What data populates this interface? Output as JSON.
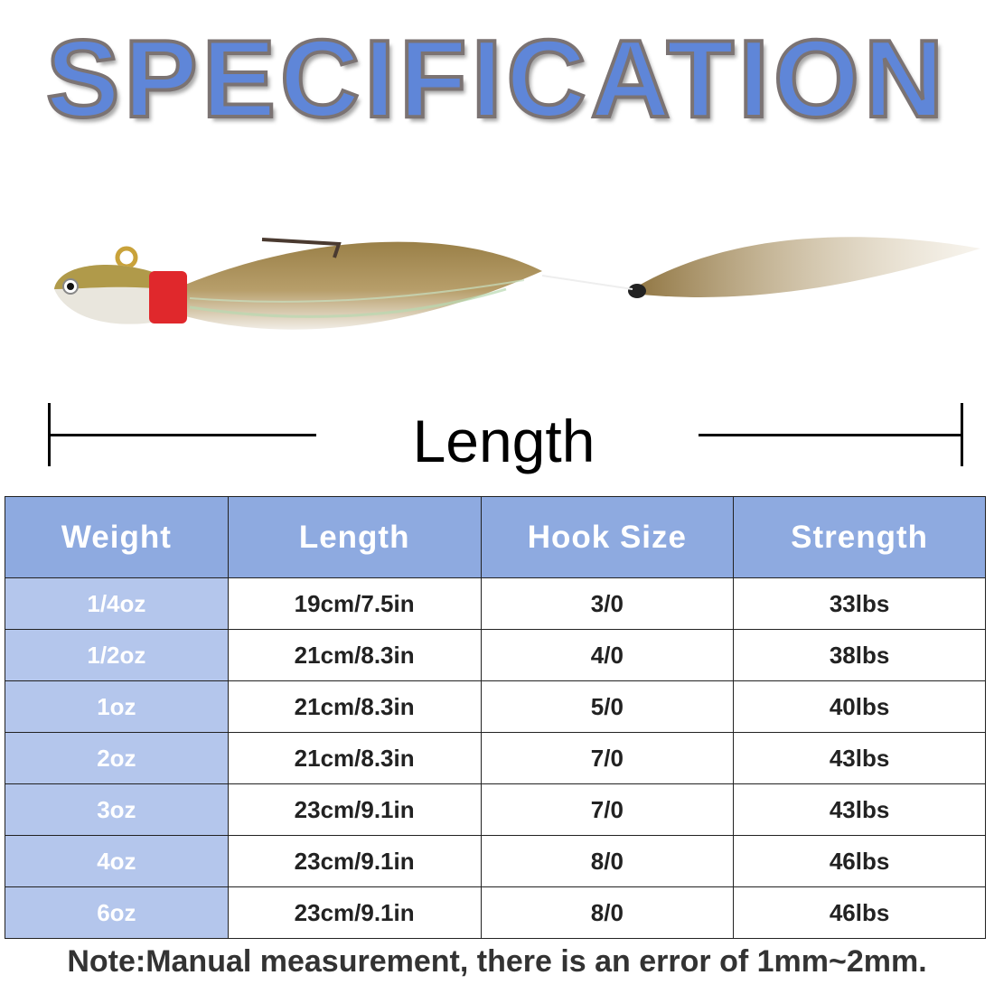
{
  "title": "SPECIFICATION",
  "dimension_label": "Length",
  "table": {
    "headers": [
      "Weight",
      "Length",
      "Hook Size",
      "Strength"
    ],
    "rows": [
      [
        "1/4oz",
        "19cm/7.5in",
        "3/0",
        "33lbs"
      ],
      [
        "1/2oz",
        "21cm/8.3in",
        "4/0",
        "38lbs"
      ],
      [
        "1oz",
        "21cm/8.3in",
        "5/0",
        "40lbs"
      ],
      [
        "2oz",
        "21cm/8.3in",
        "7/0",
        "43lbs"
      ],
      [
        "3oz",
        "23cm/9.1in",
        "7/0",
        "43lbs"
      ],
      [
        "4oz",
        "23cm/9.1in",
        "8/0",
        "46lbs"
      ],
      [
        "6oz",
        "23cm/9.1in",
        "8/0",
        "46lbs"
      ]
    ]
  },
  "note": "Note:Manual measurement, there is an error of 1mm~2mm.",
  "colors": {
    "title_fill": "#5f86d8",
    "header_bg": "#8eaae0",
    "weight_col_bg": "#b4c6ec"
  }
}
